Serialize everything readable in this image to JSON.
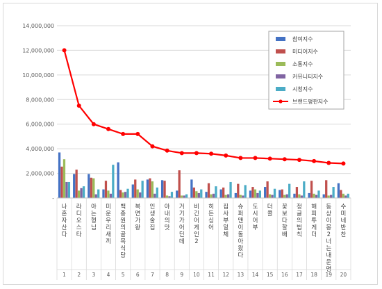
{
  "chart_data": {
    "type": "bar",
    "title": "",
    "xlabel": "",
    "ylabel": "",
    "ylim": [
      0,
      14000000
    ],
    "yticks": [
      0,
      2000000,
      4000000,
      6000000,
      8000000,
      10000000,
      12000000,
      14000000
    ],
    "ytick_labels": [
      "-",
      "2,000,000",
      "4,000,000",
      "6,000,000",
      "8,000,000",
      "10,000,000",
      "12,000,000",
      "14,000,000"
    ],
    "grid": true,
    "legend_position": "top-right",
    "index_labels": [
      "1",
      "2",
      "3",
      "4",
      "5",
      "6",
      "7",
      "8",
      "9",
      "10",
      "11",
      "12",
      "13",
      "14",
      "15",
      "16",
      "17",
      "18",
      "19",
      "20"
    ],
    "categories": [
      "나혼자산다",
      "라디오스타",
      "아는형님",
      "미운우리새끼",
      "백종원의골목식당",
      "복면가왕",
      "인생술집",
      "아내의맛",
      "거기가어딘데",
      "비긴어게인2",
      "히든싱어",
      "집사부일체",
      "슈퍼맨이돌아왔다",
      "도시어부",
      "더콜",
      "꽃보다할배",
      "정글의법칙",
      "해피투게더",
      "동상이몽2너는내운명",
      "수미네반찬"
    ],
    "series": [
      {
        "name": "참여지수",
        "kind": "bar",
        "color": "#4472c4",
        "values": [
          3700000,
          1950000,
          1950000,
          700000,
          2900000,
          1100000,
          1500000,
          1450000,
          600000,
          1500000,
          500000,
          700000,
          400000,
          600000,
          900000,
          650000,
          350000,
          400000,
          300000,
          1200000
        ]
      },
      {
        "name": "미디어지수",
        "kind": "bar",
        "color": "#c0504d",
        "values": [
          2550000,
          2300000,
          1650000,
          1400000,
          650000,
          1500000,
          1600000,
          1400000,
          2250000,
          850000,
          1200000,
          850000,
          1150000,
          900000,
          1350000,
          700000,
          900000,
          1400000,
          1450000,
          650000
        ]
      },
      {
        "name": "소통지수",
        "kind": "bar",
        "color": "#9bbb59",
        "values": [
          3150000,
          600000,
          1600000,
          600000,
          450000,
          700000,
          1350000,
          200000,
          200000,
          550000,
          300000,
          250000,
          250000,
          700000,
          300000,
          250000,
          300000,
          350000,
          200000,
          350000
        ]
      },
      {
        "name": "커뮤니티지수",
        "kind": "bar",
        "color": "#8064a2",
        "values": [
          1300000,
          800000,
          300000,
          350000,
          500000,
          450000,
          350000,
          150000,
          200000,
          400000,
          350000,
          300000,
          200000,
          400000,
          250000,
          300000,
          200000,
          250000,
          250000,
          200000
        ]
      },
      {
        "name": "시청지수",
        "kind": "bar",
        "color": "#4bacc6",
        "values": [
          1300000,
          950000,
          700000,
          2700000,
          750000,
          1400000,
          850000,
          500000,
          300000,
          700000,
          950000,
          1300000,
          1050000,
          600000,
          750000,
          1150000,
          1350000,
          600000,
          900000,
          350000
        ]
      },
      {
        "name": "브랜드평판지수",
        "kind": "line",
        "color": "#ff0000",
        "values": [
          12000000,
          7500000,
          6000000,
          5600000,
          5200000,
          5200000,
          4200000,
          3850000,
          3650000,
          3650000,
          3600000,
          3450000,
          3250000,
          3250000,
          3200000,
          3150000,
          3100000,
          3000000,
          2850000,
          2800000
        ]
      }
    ]
  }
}
